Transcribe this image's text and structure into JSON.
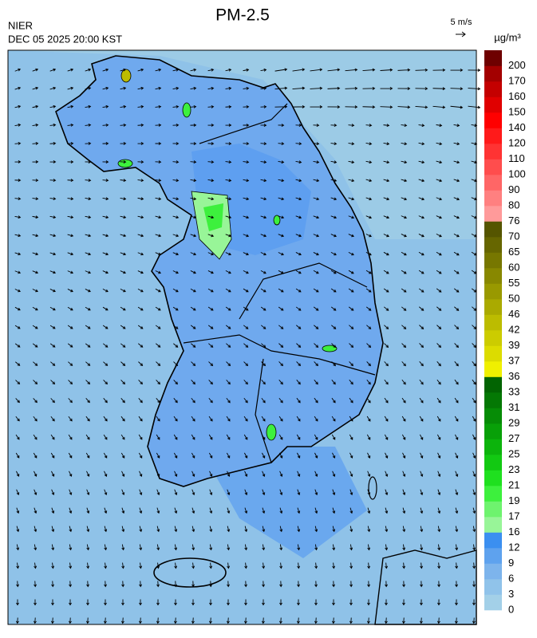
{
  "header": {
    "title": "PM-2.5",
    "agency": "NIER",
    "timestamp": "DEC 05 2025 20:00 KST",
    "wind_scale": "5 m/s"
  },
  "colorbar": {
    "unit": "µg/m³",
    "labels": [
      0,
      3,
      6,
      9,
      12,
      16,
      17,
      19,
      21,
      23,
      25,
      27,
      29,
      31,
      33,
      36,
      37,
      39,
      42,
      46,
      50,
      55,
      60,
      65,
      70,
      76,
      80,
      90,
      100,
      110,
      120,
      140,
      150,
      160,
      170,
      200
    ],
    "colors": [
      "#a3d0e8",
      "#90c3ea",
      "#7db4ec",
      "#5ea2ee",
      "#3b8ff0",
      "#98f598",
      "#6ef36e",
      "#3df03d",
      "#1fe01f",
      "#12c912",
      "#0cb40c",
      "#08a008",
      "#068c06",
      "#047804",
      "#026402",
      "#f0f000",
      "#dcdc00",
      "#cccc00",
      "#bcbc00",
      "#aaaa00",
      "#999900",
      "#888800",
      "#777700",
      "#666600",
      "#555500",
      "#ff9a9a",
      "#ff8080",
      "#ff6666",
      "#ff4d4d",
      "#ff3333",
      "#ff1a1a",
      "#ff0000",
      "#e00000",
      "#c40000",
      "#a30000",
      "#6e0000"
    ]
  }
}
